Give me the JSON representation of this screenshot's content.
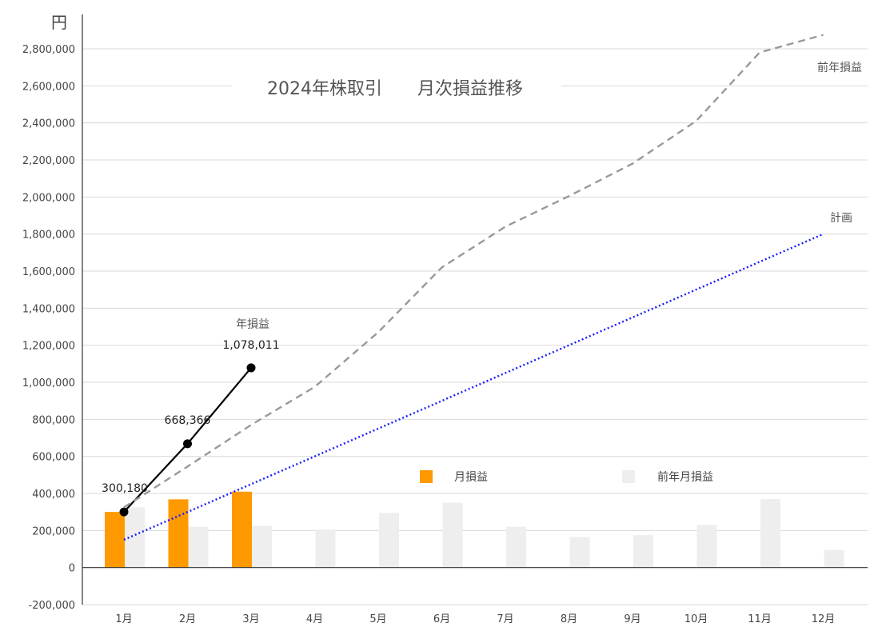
{
  "chart_data": {
    "type": "bar",
    "title": "2024年株取引　　月次損益推移",
    "ylabel": "円",
    "ylim": [
      -200000,
      2800000
    ],
    "ytick_step": 200000,
    "ytick_labels": [
      "-200,000",
      "0",
      "200,000",
      "400,000",
      "600,000",
      "800,000",
      "1,000,000",
      "1,200,000",
      "1,400,000",
      "1,600,000",
      "1,800,000",
      "2,000,000",
      "2,200,000",
      "2,400,000",
      "2,600,000",
      "2,800,000"
    ],
    "grid": true,
    "categories": [
      "1月",
      "2月",
      "3月",
      "4月",
      "5月",
      "6月",
      "7月",
      "8月",
      "9月",
      "10月",
      "11月",
      "12月"
    ],
    "series": [
      {
        "name": "月損益",
        "kind": "bar",
        "color": "#ff9900",
        "values": [
          300180,
          368186,
          409645,
          null,
          null,
          null,
          null,
          null,
          null,
          null,
          null,
          null
        ]
      },
      {
        "name": "前年月損益",
        "kind": "bar",
        "color": "#eeeeee",
        "values": [
          325000,
          220000,
          225000,
          205000,
          295000,
          350000,
          220000,
          165000,
          175000,
          230000,
          370000,
          95000
        ]
      },
      {
        "name": "年損益",
        "kind": "line",
        "style": "solid",
        "color": "#000000",
        "values": [
          300180,
          668366,
          1078011,
          null,
          null,
          null,
          null,
          null,
          null,
          null,
          null,
          null
        ],
        "point_labels": [
          "300,180",
          "668,366",
          "1,078,011"
        ]
      },
      {
        "name": "前年損益",
        "kind": "line",
        "style": "dashed",
        "color": "#999999",
        "values": [
          325000,
          545000,
          770000,
          975000,
          1270000,
          1620000,
          1840000,
          2005000,
          2180000,
          2410000,
          2780000,
          2875000
        ]
      },
      {
        "name": "計画",
        "kind": "line",
        "style": "dotted",
        "color": "#1a1aff",
        "values": [
          150000,
          300000,
          450000,
          600000,
          750000,
          900000,
          1050000,
          1200000,
          1350000,
          1500000,
          1650000,
          1800000
        ]
      }
    ],
    "legend": {
      "placement": "bottom-center",
      "items": [
        "月損益",
        "前年月損益"
      ]
    },
    "annotations": {
      "year_label": "年損益",
      "prev_year_label": "前年損益",
      "plan_label": "計画"
    }
  }
}
